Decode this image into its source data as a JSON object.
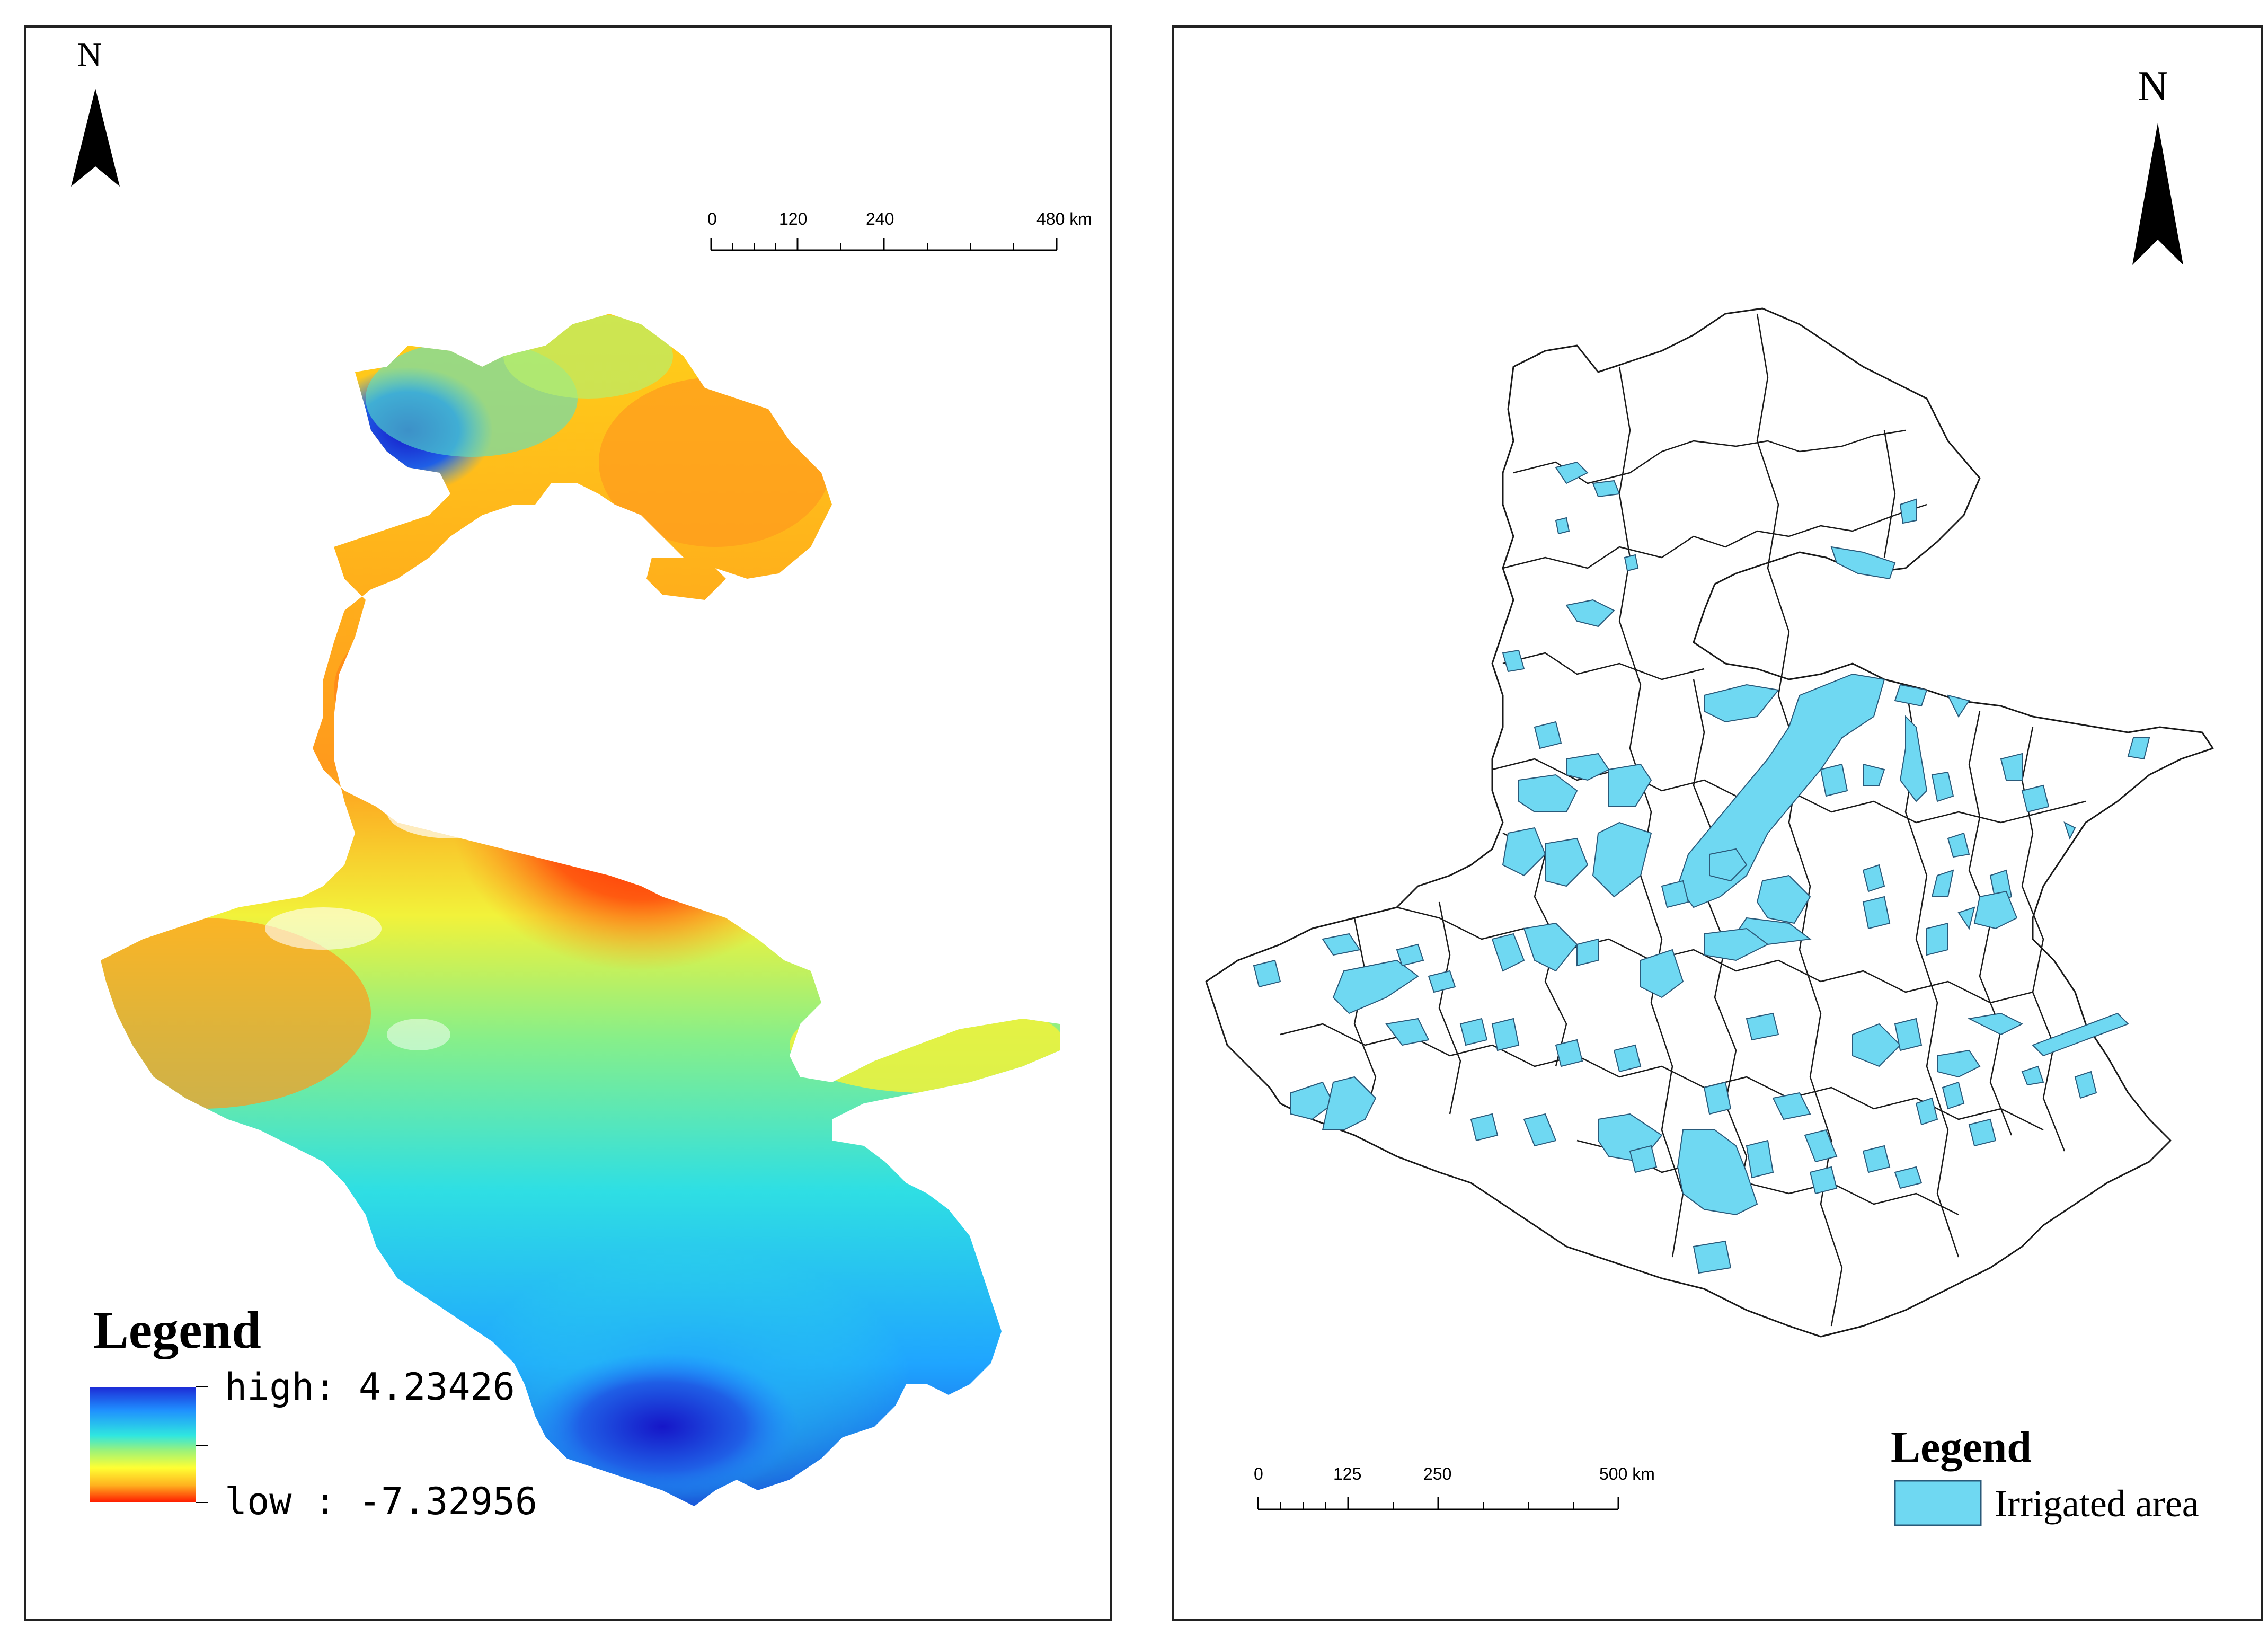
{
  "left_map": {
    "north_label": "N",
    "scale_bar": {
      "ticks": [
        "0",
        "120",
        "240",
        "480 km"
      ]
    },
    "legend": {
      "title": "Legend",
      "high_label": "high: 4.23426",
      "low_label": "low : -7.32956",
      "ramp_colors": [
        "#1d2bd6",
        "#1f8fff",
        "#2fe6e0",
        "#9bf27a",
        "#ffff33",
        "#ffb21f",
        "#ff1a00"
      ]
    }
  },
  "right_map": {
    "north_label": "N",
    "scale_bar": {
      "ticks": [
        "0",
        "125",
        "250",
        "500 km"
      ]
    },
    "legend": {
      "title": "Legend",
      "item_label": "Irrigated area",
      "item_color": "#6fd8f2"
    }
  }
}
